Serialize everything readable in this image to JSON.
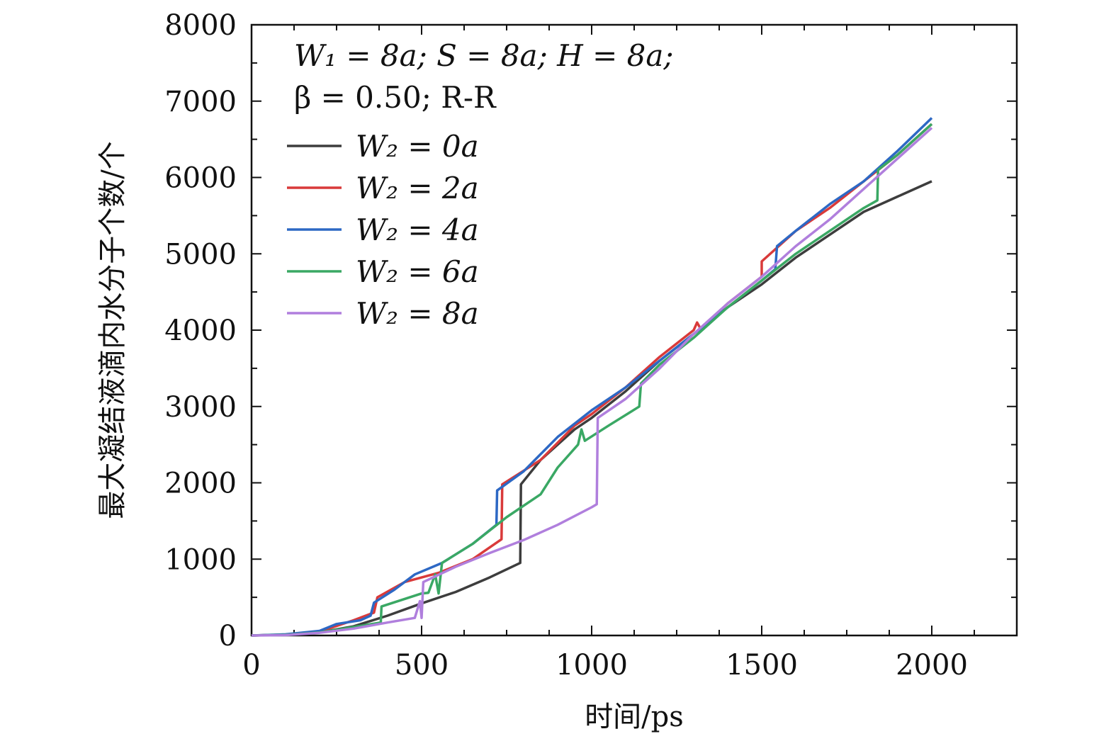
{
  "chart_data": {
    "type": "line",
    "title": "",
    "xlabel": "时间/ps",
    "ylabel": "最大凝结液滴内水分子个数/个",
    "xlim": [
      0,
      2250
    ],
    "ylim": [
      0,
      8000
    ],
    "x_ticks": [
      0,
      500,
      1000,
      1500,
      2000
    ],
    "x_tick_labels": [
      "0",
      "500",
      "1000",
      "1500",
      "2000"
    ],
    "y_ticks": [
      0,
      1000,
      2000,
      3000,
      4000,
      5000,
      6000,
      7000,
      8000
    ],
    "y_tick_labels": [
      "0",
      "1000",
      "2000",
      "3000",
      "4000",
      "5000",
      "6000",
      "7000",
      "8000"
    ],
    "annotation": {
      "line1": "W₁ = 8a;  S = 8a;  H = 8a;",
      "line2": "β = 0.50;  R-R"
    },
    "legend_position": "top-left",
    "grid": false,
    "series": [
      {
        "name": "W₂ = 0a",
        "color": "#3d3d3d",
        "points": [
          [
            0,
            0
          ],
          [
            100,
            10
          ],
          [
            200,
            40
          ],
          [
            300,
            120
          ],
          [
            400,
            260
          ],
          [
            500,
            420
          ],
          [
            600,
            570
          ],
          [
            700,
            760
          ],
          [
            790,
            950
          ],
          [
            792,
            1980
          ],
          [
            850,
            2300
          ],
          [
            950,
            2700
          ],
          [
            1000,
            2850
          ],
          [
            1100,
            3200
          ],
          [
            1200,
            3600
          ],
          [
            1300,
            3950
          ],
          [
            1400,
            4300
          ],
          [
            1500,
            4600
          ],
          [
            1600,
            4950
          ],
          [
            1700,
            5250
          ],
          [
            1800,
            5550
          ],
          [
            1900,
            5750
          ],
          [
            2000,
            5950
          ]
        ]
      },
      {
        "name": "W₂ = 2a",
        "color": "#d93a3a",
        "points": [
          [
            0,
            0
          ],
          [
            100,
            10
          ],
          [
            200,
            50
          ],
          [
            300,
            200
          ],
          [
            360,
            300
          ],
          [
            370,
            500
          ],
          [
            450,
            700
          ],
          [
            550,
            820
          ],
          [
            650,
            1000
          ],
          [
            735,
            1260
          ],
          [
            737,
            1980
          ],
          [
            850,
            2300
          ],
          [
            950,
            2750
          ],
          [
            1000,
            2900
          ],
          [
            1100,
            3250
          ],
          [
            1200,
            3650
          ],
          [
            1300,
            4000
          ],
          [
            1310,
            4100
          ],
          [
            1320,
            4020
          ],
          [
            1400,
            4350
          ],
          [
            1500,
            4700
          ],
          [
            1500,
            4900
          ],
          [
            1600,
            5300
          ],
          [
            1700,
            5600
          ],
          [
            1800,
            5950
          ],
          [
            1900,
            6300
          ],
          [
            2000,
            6700
          ]
        ]
      },
      {
        "name": "W₂ = 4a",
        "color": "#2d68c4",
        "points": [
          [
            0,
            0
          ],
          [
            100,
            15
          ],
          [
            200,
            60
          ],
          [
            250,
            150
          ],
          [
            320,
            200
          ],
          [
            350,
            260
          ],
          [
            360,
            430
          ],
          [
            420,
            600
          ],
          [
            480,
            800
          ],
          [
            560,
            950
          ],
          [
            650,
            1200
          ],
          [
            720,
            1450
          ],
          [
            722,
            1900
          ],
          [
            800,
            2150
          ],
          [
            900,
            2600
          ],
          [
            1000,
            2950
          ],
          [
            1100,
            3250
          ],
          [
            1200,
            3600
          ],
          [
            1300,
            3950
          ],
          [
            1400,
            4300
          ],
          [
            1500,
            4650
          ],
          [
            1540,
            4800
          ],
          [
            1545,
            5100
          ],
          [
            1600,
            5300
          ],
          [
            1700,
            5650
          ],
          [
            1800,
            5950
          ],
          [
            1900,
            6350
          ],
          [
            2000,
            6780
          ]
        ]
      },
      {
        "name": "W₂ = 6a",
        "color": "#3aa864",
        "points": [
          [
            0,
            0
          ],
          [
            100,
            8
          ],
          [
            200,
            40
          ],
          [
            300,
            110
          ],
          [
            380,
            170
          ],
          [
            382,
            380
          ],
          [
            500,
            550
          ],
          [
            520,
            560
          ],
          [
            540,
            800
          ],
          [
            550,
            550
          ],
          [
            560,
            950
          ],
          [
            650,
            1200
          ],
          [
            750,
            1550
          ],
          [
            850,
            1850
          ],
          [
            900,
            2200
          ],
          [
            960,
            2500
          ],
          [
            970,
            2700
          ],
          [
            980,
            2550
          ],
          [
            1050,
            2750
          ],
          [
            1140,
            3000
          ],
          [
            1145,
            3300
          ],
          [
            1200,
            3550
          ],
          [
            1300,
            3900
          ],
          [
            1400,
            4300
          ],
          [
            1500,
            4650
          ],
          [
            1600,
            5000
          ],
          [
            1700,
            5300
          ],
          [
            1800,
            5600
          ],
          [
            1840,
            5700
          ],
          [
            1842,
            6100
          ],
          [
            1900,
            6300
          ],
          [
            2000,
            6700
          ]
        ]
      },
      {
        "name": "W₂ = 8a",
        "color": "#b07fdd",
        "points": [
          [
            0,
            0
          ],
          [
            100,
            5
          ],
          [
            200,
            35
          ],
          [
            300,
            90
          ],
          [
            400,
            170
          ],
          [
            480,
            230
          ],
          [
            495,
            450
          ],
          [
            500,
            230
          ],
          [
            505,
            700
          ],
          [
            600,
            900
          ],
          [
            700,
            1080
          ],
          [
            800,
            1250
          ],
          [
            900,
            1450
          ],
          [
            1000,
            1680
          ],
          [
            1015,
            1720
          ],
          [
            1018,
            2850
          ],
          [
            1100,
            3100
          ],
          [
            1200,
            3500
          ],
          [
            1300,
            3950
          ],
          [
            1400,
            4350
          ],
          [
            1500,
            4700
          ],
          [
            1600,
            5100
          ],
          [
            1700,
            5450
          ],
          [
            1800,
            5850
          ],
          [
            1900,
            6250
          ],
          [
            2000,
            6650
          ]
        ]
      }
    ]
  }
}
